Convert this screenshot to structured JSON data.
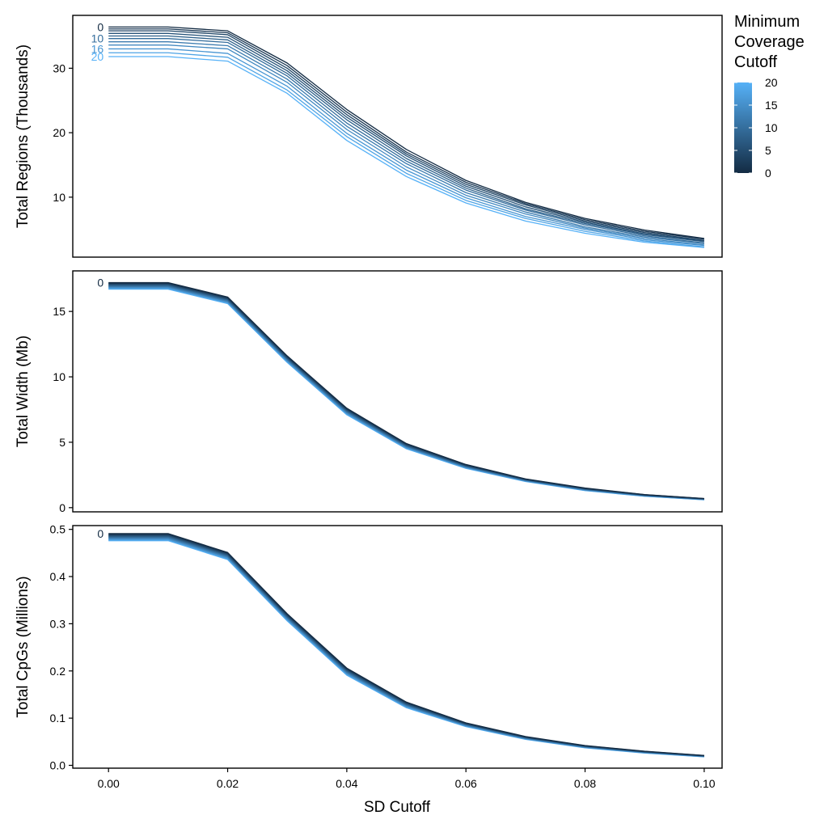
{
  "chart_data": [
    {
      "type": "line",
      "ylabel": "Total Regions (Thousands)",
      "xlabel": "",
      "xlim": [
        -0.006,
        0.103
      ],
      "ylim": [
        0.7,
        38.2
      ],
      "y_ticks": [
        10,
        20,
        30
      ],
      "x_ticks": [],
      "x": [
        0.0,
        0.01,
        0.02,
        0.03,
        0.04,
        0.05,
        0.06,
        0.07,
        0.08,
        0.09,
        0.1
      ],
      "line_labels": [
        {
          "cutoff": 0,
          "text": "0"
        },
        {
          "cutoff": 10,
          "text": "10"
        },
        {
          "cutoff": 16,
          "text": "16"
        },
        {
          "cutoff": 20,
          "text": "20"
        }
      ],
      "series": [
        {
          "cutoff": 0,
          "values": [
            36.4,
            36.4,
            35.8,
            30.8,
            23.6,
            17.4,
            12.6,
            9.2,
            6.7,
            4.9,
            3.6
          ]
        },
        {
          "cutoff": 2,
          "values": [
            36.1,
            36.1,
            35.5,
            30.4,
            23.2,
            17.0,
            12.3,
            9.0,
            6.5,
            4.7,
            3.5
          ]
        },
        {
          "cutoff": 4,
          "values": [
            35.8,
            35.8,
            35.2,
            30.0,
            22.8,
            16.7,
            12.0,
            8.8,
            6.3,
            4.5,
            3.3
          ]
        },
        {
          "cutoff": 6,
          "values": [
            35.4,
            35.4,
            34.8,
            29.6,
            22.4,
            16.4,
            11.7,
            8.5,
            6.1,
            4.3,
            3.2
          ]
        },
        {
          "cutoff": 8,
          "values": [
            35.0,
            35.0,
            34.4,
            29.2,
            22.0,
            16.0,
            11.4,
            8.2,
            5.9,
            4.2,
            3.1
          ]
        },
        {
          "cutoff": 10,
          "values": [
            34.6,
            34.6,
            34.0,
            28.8,
            21.5,
            15.6,
            11.1,
            8.0,
            5.7,
            4.0,
            2.9
          ]
        },
        {
          "cutoff": 12,
          "values": [
            34.1,
            34.1,
            33.5,
            28.3,
            21.0,
            15.2,
            10.7,
            7.7,
            5.4,
            3.8,
            2.8
          ]
        },
        {
          "cutoff": 14,
          "values": [
            33.6,
            33.6,
            33.0,
            27.8,
            20.5,
            14.7,
            10.3,
            7.4,
            5.2,
            3.6,
            2.6
          ]
        },
        {
          "cutoff": 16,
          "values": [
            33.0,
            33.0,
            32.3,
            27.2,
            19.9,
            14.2,
            9.9,
            7.0,
            5.0,
            3.4,
            2.5
          ]
        },
        {
          "cutoff": 18,
          "values": [
            32.4,
            32.4,
            31.7,
            26.6,
            19.4,
            13.7,
            9.5,
            6.7,
            4.7,
            3.2,
            2.3
          ]
        },
        {
          "cutoff": 20,
          "values": [
            31.8,
            31.8,
            31.1,
            26.1,
            18.8,
            13.2,
            9.1,
            6.3,
            4.4,
            3.0,
            2.2
          ]
        }
      ]
    },
    {
      "type": "line",
      "ylabel": "Total Width (Mb)",
      "xlabel": "",
      "xlim": [
        -0.006,
        0.103
      ],
      "ylim": [
        -0.32,
        18.1
      ],
      "y_ticks": [
        0,
        5,
        10,
        15
      ],
      "x_ticks": [],
      "x": [
        0.0,
        0.01,
        0.02,
        0.03,
        0.04,
        0.05,
        0.06,
        0.07,
        0.08,
        0.09,
        0.1
      ],
      "line_labels": [
        {
          "cutoff": 0,
          "text": "0"
        }
      ],
      "series": [
        {
          "cutoff": 0,
          "values": [
            17.2,
            17.2,
            16.1,
            11.6,
            7.6,
            4.9,
            3.3,
            2.2,
            1.5,
            1.0,
            0.7
          ]
        },
        {
          "cutoff": 2,
          "values": [
            17.15,
            17.15,
            16.05,
            11.55,
            7.55,
            4.86,
            3.27,
            2.18,
            1.48,
            0.99,
            0.69
          ]
        },
        {
          "cutoff": 4,
          "values": [
            17.1,
            17.1,
            16.0,
            11.5,
            7.5,
            4.82,
            3.24,
            2.16,
            1.46,
            0.98,
            0.68
          ]
        },
        {
          "cutoff": 6,
          "values": [
            17.05,
            17.05,
            15.95,
            11.45,
            7.45,
            4.78,
            3.21,
            2.14,
            1.44,
            0.96,
            0.67
          ]
        },
        {
          "cutoff": 8,
          "values": [
            17.0,
            17.0,
            15.9,
            11.4,
            7.4,
            4.74,
            3.18,
            2.12,
            1.42,
            0.95,
            0.66
          ]
        },
        {
          "cutoff": 10,
          "values": [
            16.95,
            16.95,
            15.85,
            11.35,
            7.35,
            4.7,
            3.15,
            2.1,
            1.4,
            0.94,
            0.65
          ]
        },
        {
          "cutoff": 12,
          "values": [
            16.9,
            16.9,
            15.8,
            11.3,
            7.3,
            4.66,
            3.12,
            2.08,
            1.38,
            0.92,
            0.64
          ]
        },
        {
          "cutoff": 14,
          "values": [
            16.85,
            16.85,
            15.75,
            11.25,
            7.25,
            4.62,
            3.09,
            2.06,
            1.36,
            0.91,
            0.63
          ]
        },
        {
          "cutoff": 16,
          "values": [
            16.8,
            16.8,
            15.7,
            11.2,
            7.2,
            4.58,
            3.06,
            2.04,
            1.34,
            0.9,
            0.62
          ]
        },
        {
          "cutoff": 18,
          "values": [
            16.75,
            16.75,
            15.65,
            11.15,
            7.15,
            4.54,
            3.03,
            2.02,
            1.32,
            0.88,
            0.61
          ]
        },
        {
          "cutoff": 20,
          "values": [
            16.7,
            16.7,
            15.6,
            11.1,
            7.1,
            4.5,
            3.0,
            2.0,
            1.3,
            0.87,
            0.6
          ]
        }
      ]
    },
    {
      "type": "line",
      "ylabel": "Total CpGs (Millions)",
      "xlabel": "SD Cutoff",
      "xlim": [
        -0.006,
        0.103
      ],
      "ylim": [
        -0.006,
        0.508
      ],
      "y_ticks": [
        0.0,
        0.1,
        0.2,
        0.3,
        0.4,
        0.5
      ],
      "y_tick_labels": [
        "0.0",
        "0.1",
        "0.2",
        "0.3",
        "0.4",
        "0.5"
      ],
      "x_ticks": [
        0.0,
        0.02,
        0.04,
        0.06,
        0.08,
        0.1
      ],
      "x_tick_labels": [
        "0.00",
        "0.02",
        "0.04",
        "0.06",
        "0.08",
        "0.10"
      ],
      "x": [
        0.0,
        0.01,
        0.02,
        0.03,
        0.04,
        0.05,
        0.06,
        0.07,
        0.08,
        0.09,
        0.1
      ],
      "line_labels": [
        {
          "cutoff": 0,
          "text": "0"
        }
      ],
      "series": [
        {
          "cutoff": 0,
          "values": [
            0.491,
            0.491,
            0.451,
            0.321,
            0.206,
            0.134,
            0.09,
            0.061,
            0.042,
            0.03,
            0.021
          ]
        },
        {
          "cutoff": 2,
          "values": [
            0.4895,
            0.4895,
            0.4495,
            0.3195,
            0.2045,
            0.1328,
            0.0892,
            0.0604,
            0.0415,
            0.0296,
            0.0207
          ]
        },
        {
          "cutoff": 4,
          "values": [
            0.488,
            0.488,
            0.448,
            0.318,
            0.203,
            0.1316,
            0.0884,
            0.0598,
            0.041,
            0.0292,
            0.0204
          ]
        },
        {
          "cutoff": 6,
          "values": [
            0.4865,
            0.4865,
            0.4465,
            0.3165,
            0.2015,
            0.1304,
            0.0876,
            0.0592,
            0.0405,
            0.0288,
            0.0201
          ]
        },
        {
          "cutoff": 8,
          "values": [
            0.485,
            0.485,
            0.445,
            0.315,
            0.2,
            0.1292,
            0.0868,
            0.0586,
            0.04,
            0.0284,
            0.0198
          ]
        },
        {
          "cutoff": 10,
          "values": [
            0.4835,
            0.4835,
            0.4435,
            0.3135,
            0.1985,
            0.128,
            0.086,
            0.058,
            0.0395,
            0.028,
            0.0195
          ]
        },
        {
          "cutoff": 12,
          "values": [
            0.482,
            0.482,
            0.442,
            0.312,
            0.197,
            0.1268,
            0.0852,
            0.0574,
            0.039,
            0.0276,
            0.0192
          ]
        },
        {
          "cutoff": 14,
          "values": [
            0.4805,
            0.4805,
            0.4405,
            0.3105,
            0.1955,
            0.1256,
            0.0844,
            0.0568,
            0.0385,
            0.0272,
            0.0189
          ]
        },
        {
          "cutoff": 16,
          "values": [
            0.479,
            0.479,
            0.439,
            0.309,
            0.194,
            0.1244,
            0.0836,
            0.0562,
            0.038,
            0.0268,
            0.0186
          ]
        },
        {
          "cutoff": 18,
          "values": [
            0.4775,
            0.4775,
            0.4375,
            0.3075,
            0.1925,
            0.1232,
            0.0828,
            0.0556,
            0.0375,
            0.0264,
            0.0183
          ]
        },
        {
          "cutoff": 20,
          "values": [
            0.476,
            0.476,
            0.436,
            0.306,
            0.191,
            0.122,
            0.082,
            0.055,
            0.037,
            0.026,
            0.018
          ]
        }
      ]
    }
  ],
  "legend": {
    "title_lines": [
      "Minimum",
      "Coverage",
      "Cutoff"
    ],
    "range": [
      0,
      20
    ],
    "ticks": [
      0,
      5,
      10,
      15,
      20
    ],
    "tick_labels": [
      "0",
      "5",
      "10",
      "15",
      "20"
    ],
    "color_low": "#132b43",
    "color_high": "#56b1f7",
    "placement": "right"
  }
}
